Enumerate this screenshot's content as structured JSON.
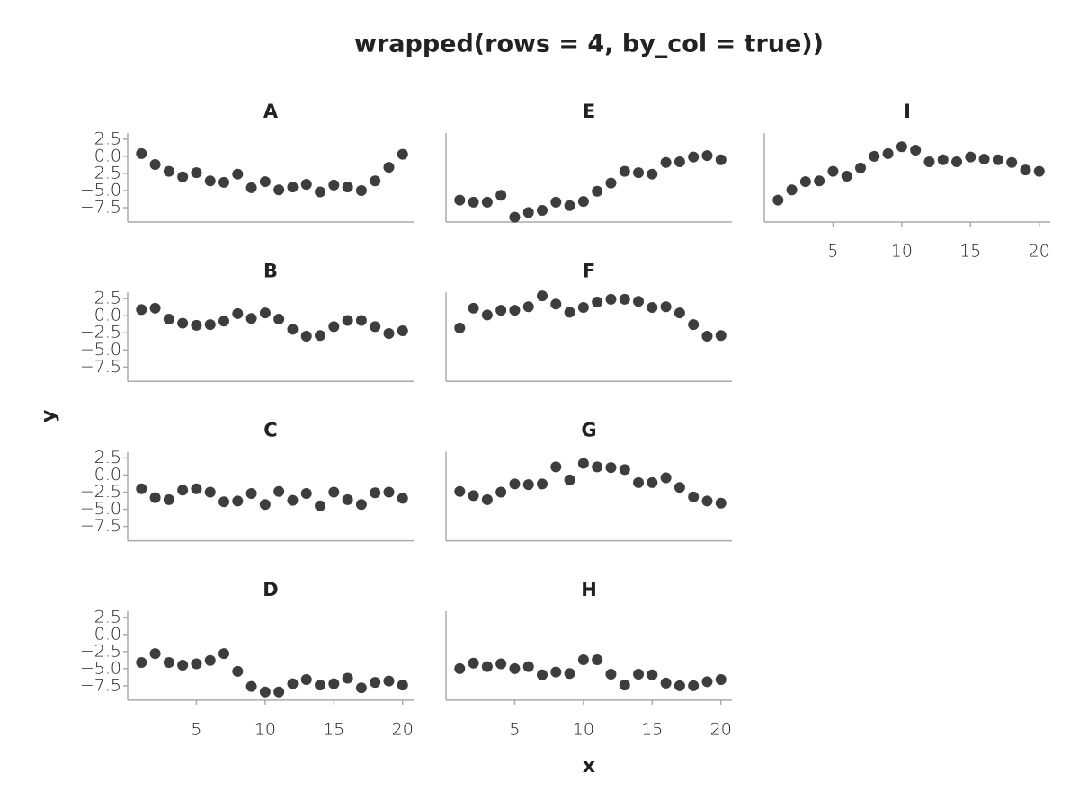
{
  "chart_data": {
    "type": "scatter",
    "title": "wrapped(rows = 4, by_col = true))",
    "xlabel": "x",
    "ylabel": "y",
    "color": "#3d3d3d",
    "wrap_rows": 4,
    "by_col": true,
    "x": [
      1,
      2,
      3,
      4,
      5,
      6,
      7,
      8,
      9,
      10,
      11,
      12,
      13,
      14,
      15,
      16,
      17,
      18,
      19,
      20
    ],
    "xlim": [
      0,
      20.8
    ],
    "xticks": [
      5,
      10,
      15,
      20
    ],
    "ylim": [
      -9.6,
      3.4
    ],
    "yticks": [
      2.5,
      {
        "value": 0,
        "label": "0.0"
      },
      {
        "value": -2.5,
        "label": "−2.5"
      },
      {
        "value": -5,
        "label": "−5.0"
      },
      {
        "value": -7.5,
        "label": "−7.5"
      }
    ],
    "facets": [
      {
        "title": "A",
        "values": [
          0.4,
          -1.2,
          -2.2,
          -3.0,
          -2.4,
          -3.6,
          -3.8,
          -2.6,
          -4.6,
          -3.7,
          -4.9,
          -4.5,
          -4.1,
          -5.2,
          -4.2,
          -4.5,
          -5.0,
          -3.6,
          -1.6,
          0.3
        ]
      },
      {
        "title": "B",
        "values": [
          0.9,
          1.1,
          -0.5,
          -1.1,
          -1.4,
          -1.3,
          -0.8,
          0.3,
          -0.4,
          0.4,
          -0.5,
          -2.0,
          -3.0,
          -2.9,
          -1.6,
          -0.7,
          -0.7,
          -1.6,
          -2.6,
          -2.2
        ]
      },
      {
        "title": "C",
        "values": [
          -2.0,
          -3.3,
          -3.6,
          -2.2,
          -2.0,
          -2.5,
          -3.9,
          -3.8,
          -2.7,
          -4.3,
          -2.4,
          -3.7,
          -2.7,
          -4.5,
          -2.5,
          -3.6,
          -4.3,
          -2.6,
          -2.5,
          -3.4
        ]
      },
      {
        "title": "D",
        "values": [
          -4.1,
          -2.8,
          -4.1,
          -4.5,
          -4.3,
          -3.8,
          -2.8,
          -5.4,
          -7.6,
          -8.4,
          -8.4,
          -7.2,
          -6.6,
          -7.4,
          -7.2,
          -6.4,
          -7.8,
          -7.0,
          -6.8,
          -7.4
        ]
      },
      {
        "title": "E",
        "values": [
          -6.4,
          -6.7,
          -6.7,
          -5.7,
          -8.9,
          -8.2,
          -7.9,
          -6.7,
          -7.2,
          -6.6,
          -5.1,
          -3.9,
          -2.2,
          -2.4,
          -2.6,
          -0.9,
          -0.8,
          -0.1,
          0.1,
          -0.5
        ]
      },
      {
        "title": "F",
        "values": [
          -1.8,
          1.1,
          0.1,
          0.8,
          0.8,
          1.3,
          2.9,
          1.7,
          0.5,
          1.2,
          2.0,
          2.4,
          2.4,
          2.1,
          1.2,
          1.3,
          0.4,
          -1.3,
          -3.0,
          -2.9
        ]
      },
      {
        "title": "G",
        "values": [
          -2.4,
          -3.0,
          -3.6,
          -2.5,
          -1.3,
          -1.4,
          -1.3,
          1.2,
          -0.7,
          1.7,
          1.2,
          1.1,
          0.8,
          -1.1,
          -1.1,
          -0.4,
          -1.8,
          -3.2,
          -3.8,
          -4.1
        ]
      },
      {
        "title": "H",
        "values": [
          -5.0,
          -4.2,
          -4.7,
          -4.3,
          -5.0,
          -4.7,
          -5.9,
          -5.5,
          -5.7,
          -3.7,
          -3.7,
          -5.8,
          -7.4,
          -5.8,
          -5.9,
          -7.1,
          -7.5,
          -7.5,
          -6.9,
          -6.6
        ]
      },
      {
        "title": "I",
        "values": [
          -6.4,
          -4.9,
          -3.7,
          -3.6,
          -2.2,
          -2.9,
          -1.7,
          0.0,
          0.4,
          1.4,
          0.9,
          -0.8,
          -0.5,
          -0.8,
          -0.1,
          -0.4,
          -0.5,
          -0.9,
          -2.0,
          -2.2
        ]
      }
    ]
  }
}
